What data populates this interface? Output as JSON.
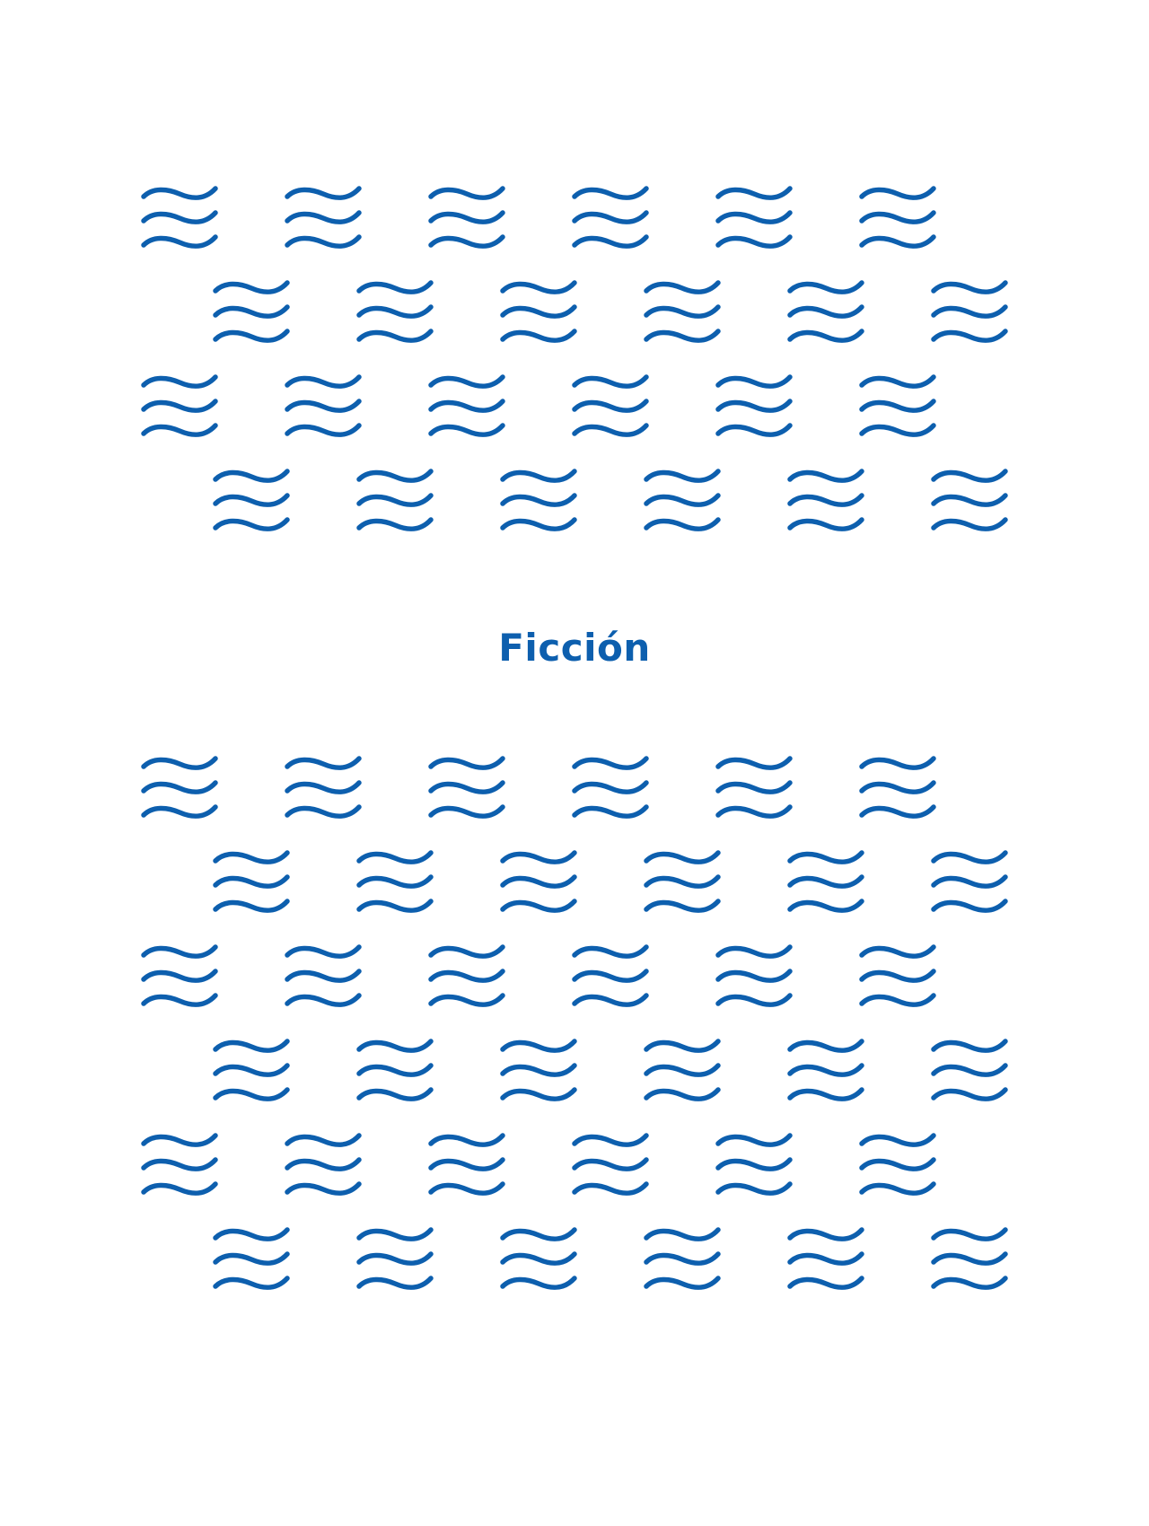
{
  "colors": {
    "accent": "#0D5FAE",
    "background": "#FFFFFF"
  },
  "icon": "wave-icon",
  "title": "Ficción",
  "patterns": {
    "top_rows": 4,
    "bottom_rows": 6,
    "icons_per_row": 6
  }
}
